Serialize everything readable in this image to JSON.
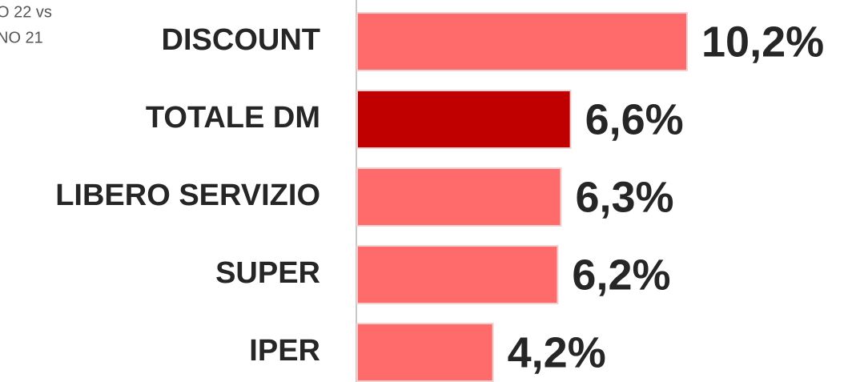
{
  "chart_data": {
    "type": "barh",
    "subtitle": [
      "O 22 vs",
      "NO 21"
    ],
    "categories": [
      "DISCOUNT",
      "TOTALE DM",
      "LIBERO SERVIZIO",
      "SUPER",
      "IPER"
    ],
    "values": [
      10.2,
      6.6,
      6.3,
      6.2,
      4.2
    ],
    "value_labels": [
      "10,2%",
      "6,6%",
      "6,3%",
      "6,2%",
      "4,2%"
    ],
    "colors": [
      "#ff6b6b",
      "#c00000",
      "#ff6b6b",
      "#ff6b6b",
      "#ff6b6b"
    ]
  }
}
